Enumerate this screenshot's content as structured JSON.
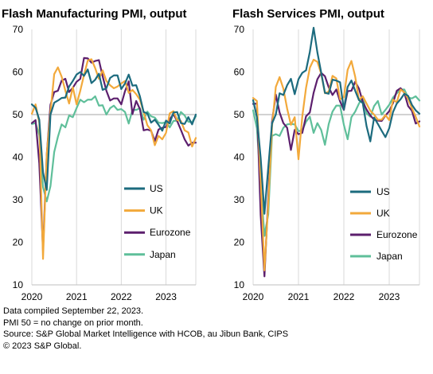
{
  "colors": {
    "US": "#1c6b7e",
    "UK": "#f2a93b",
    "Eurozone": "#5c1f6d",
    "Japan": "#5fbf9a",
    "grid": "#d9d9d9",
    "axis": "#bfbfbf",
    "reference": "#a6a6a6"
  },
  "chart_data": [
    {
      "type": "line",
      "title": "Flash Manufacturing PMI, output",
      "xlabel": "",
      "ylabel": "",
      "ylim": [
        10,
        70
      ],
      "yticks": [
        10,
        20,
        30,
        40,
        50,
        60,
        70
      ],
      "xticks": [
        "2020",
        "2021",
        "2022",
        "2023"
      ],
      "x_range": [
        "2020-01",
        "2023-09"
      ],
      "grid": "vertical",
      "reference_line": 50,
      "legend": "center-right",
      "series": [
        {
          "name": "US",
          "start": "2020-01",
          "values": [
            52.4,
            51.6,
            48.8,
            36.4,
            32.3,
            50.0,
            52.8,
            53.3,
            53.9,
            54.0,
            56.6,
            57.9,
            59.4,
            60.0,
            59.1,
            60.6,
            57.4,
            58.2,
            59.6,
            55.8,
            56.2,
            58.6,
            59.2,
            59.2,
            56.0,
            57.3,
            59.4,
            56.8,
            56.9,
            54.3,
            50.6,
            50.3,
            48.1,
            48.8,
            47.6,
            46.2,
            48.6,
            47.9,
            50.5,
            50.6,
            48.0,
            47.8,
            49.4,
            47.7,
            50.0
          ]
        },
        {
          "name": "UK",
          "start": "2020-01",
          "values": [
            50.2,
            52.4,
            48.1,
            16.1,
            40.6,
            50.6,
            59.5,
            61.1,
            58.9,
            55.6,
            52.6,
            56.4,
            52.4,
            55.6,
            59.3,
            62.7,
            63.0,
            60.9,
            58.4,
            60.4,
            57.9,
            56.9,
            56.2,
            56.6,
            57.3,
            57.9,
            55.1,
            55.8,
            54.8,
            53.5,
            50.6,
            47.5,
            46.3,
            42.8,
            45.0,
            44.2,
            45.7,
            50.3,
            50.8,
            48.7,
            48.5,
            46.3,
            45.8,
            42.5,
            44.5
          ]
        },
        {
          "name": "Eurozone",
          "start": "2020-01",
          "values": [
            48.0,
            48.7,
            38.5,
            18.1,
            40.6,
            52.3,
            55.3,
            55.6,
            58.0,
            58.4,
            55.3,
            56.3,
            57.7,
            58.4,
            63.3,
            63.2,
            62.2,
            62.6,
            62.8,
            59.0,
            55.6,
            53.3,
            53.8,
            53.8,
            52.4,
            55.5,
            57.8,
            50.1,
            53.2,
            51.3,
            46.3,
            46.5,
            46.2,
            43.8,
            46.5,
            46.9,
            47.1,
            48.9,
            50.1,
            48.5,
            46.4,
            44.2,
            42.7,
            43.4,
            43.4
          ]
        },
        {
          "name": "Japan",
          "start": "2020-01",
          "values": [
            47.8,
            48.0,
            45.2,
            33.0,
            29.6,
            33.2,
            41.2,
            44.8,
            47.7,
            47.0,
            49.8,
            49.4,
            51.5,
            53.5,
            52.9,
            53.5,
            53.5,
            54.3,
            52.1,
            52.2,
            50.0,
            51.5,
            52.1,
            51.1,
            51.3,
            50.6,
            47.9,
            51.1,
            51.1,
            51.5,
            48.8,
            50.7,
            49.6,
            49.3,
            48.1,
            48.0,
            48.2,
            47.0,
            48.5,
            48.6,
            50.6,
            49.8,
            48.3,
            48.2,
            49.6
          ]
        }
      ]
    },
    {
      "type": "line",
      "title": "Flash Services PMI, output",
      "xlabel": "",
      "ylabel": "",
      "ylim": [
        10,
        70
      ],
      "yticks": [
        10,
        20,
        30,
        40,
        50,
        60,
        70
      ],
      "xticks": [
        "2020",
        "2021",
        "2022",
        "2023"
      ],
      "x_range": [
        "2020-01",
        "2023-09"
      ],
      "grid": "vertical",
      "reference_line": 50,
      "legend": "bottom-right",
      "series": [
        {
          "name": "US",
          "start": "2020-01",
          "values": [
            53.4,
            49.4,
            39.8,
            26.7,
            37.5,
            47.9,
            50.0,
            55.0,
            54.6,
            56.9,
            58.4,
            54.8,
            58.3,
            59.8,
            60.4,
            64.7,
            70.4,
            64.6,
            59.9,
            55.1,
            54.9,
            58.2,
            58.0,
            57.6,
            51.2,
            56.5,
            58.0,
            55.6,
            53.4,
            52.7,
            47.3,
            43.7,
            49.3,
            47.8,
            46.2,
            44.7,
            46.8,
            50.6,
            52.6,
            53.6,
            54.9,
            54.4,
            52.3,
            51.0,
            50.2
          ]
        },
        {
          "name": "UK",
          "start": "2020-01",
          "values": [
            53.9,
            53.2,
            34.5,
            13.4,
            29.0,
            47.1,
            56.5,
            58.8,
            56.1,
            51.4,
            47.6,
            49.4,
            39.5,
            49.5,
            56.3,
            61.0,
            62.9,
            62.4,
            59.6,
            55.0,
            55.4,
            59.1,
            58.5,
            53.6,
            54.1,
            60.5,
            62.6,
            58.9,
            53.4,
            54.3,
            52.6,
            50.9,
            50.0,
            48.8,
            48.8,
            49.9,
            48.7,
            53.5,
            52.9,
            55.9,
            55.2,
            53.7,
            51.5,
            49.5,
            47.2
          ]
        },
        {
          "name": "Eurozone",
          "start": "2020-01",
          "values": [
            52.5,
            52.6,
            26.4,
            12.0,
            30.5,
            48.3,
            54.7,
            50.5,
            48.0,
            46.9,
            41.7,
            46.4,
            45.4,
            45.7,
            49.6,
            50.5,
            55.1,
            58.3,
            59.8,
            59.0,
            56.4,
            54.6,
            55.9,
            53.1,
            51.1,
            55.5,
            55.6,
            57.7,
            56.1,
            53.0,
            51.2,
            49.8,
            48.8,
            48.6,
            48.5,
            49.8,
            50.8,
            52.7,
            55.6,
            56.2,
            55.1,
            52.0,
            50.9,
            47.9,
            48.4
          ]
        },
        {
          "name": "Japan",
          "start": "2020-01",
          "values": [
            51.0,
            46.8,
            33.8,
            21.5,
            26.5,
            45.0,
            45.4,
            45.0,
            46.9,
            47.7,
            47.8,
            47.7,
            46.1,
            46.3,
            48.3,
            49.5,
            45.7,
            48.0,
            46.4,
            42.9,
            47.8,
            50.7,
            52.1,
            52.1,
            47.6,
            44.2,
            49.4,
            50.7,
            52.6,
            54.0,
            50.3,
            49.5,
            52.0,
            53.2,
            50.0,
            51.1,
            52.3,
            54.0,
            55.0,
            55.9,
            55.9,
            54.0,
            53.8,
            54.3,
            53.3
          ]
        }
      ]
    }
  ],
  "footnotes": {
    "line1": "Data compiled September 22, 2023.",
    "line2": "PMI 50 = no change on prior month.",
    "line3": "Source: S&P Global Market Intelligence with HCOB, au Jibun Bank, CIPS",
    "line4": "© 2023 S&P Global."
  }
}
